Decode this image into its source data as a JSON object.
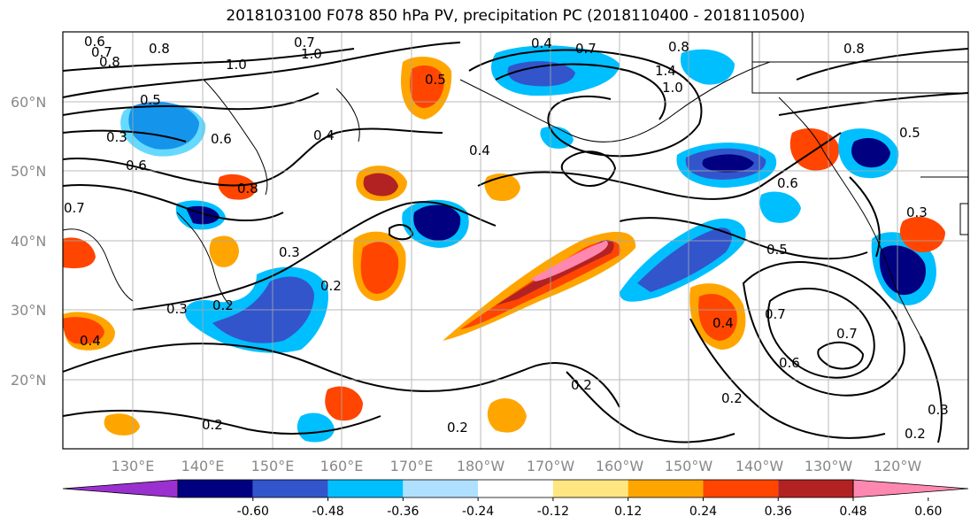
{
  "title": "2018103100 F078 850 hPa PV, precipitation PC (2018110400 - 2018110500)",
  "lat_labels": [
    "60°N",
    "50°N",
    "40°N",
    "30°N",
    "20°N"
  ],
  "lon_labels": [
    "130°E",
    "140°E",
    "150°E",
    "160°E",
    "170°E",
    "180°W",
    "170°W",
    "160°W",
    "150°W",
    "140°W",
    "130°W",
    "120°W"
  ],
  "colorbar": {
    "levels": [
      "-0.60",
      "-0.48",
      "-0.36",
      "-0.24",
      "-0.12",
      "0.12",
      "0.24",
      "0.36",
      "0.48",
      "0.60"
    ],
    "colors": [
      "#9b30d0",
      "#000080",
      "#3355cc",
      "#00bfff",
      "#b0e0ff",
      "#ffffff",
      "#ffe680",
      "#ffa500",
      "#ff4500",
      "#b22222",
      "#ff88b0"
    ]
  },
  "contour_labels": [
    "0.6",
    "0.7",
    "0.8",
    "0.8",
    "1.0",
    "0.7",
    "1.0",
    "0.4",
    "0.7",
    "0.8",
    "1.4",
    "1.0",
    "0.8",
    "0.5",
    "0.3",
    "0.6",
    "0.4",
    "0.6",
    "0.8",
    "0.7",
    "0.3",
    "0.2",
    "0.3",
    "0.2",
    "0.5",
    "0.4",
    "0.2",
    "0.2",
    "0.6",
    "0.5",
    "0.7",
    "0.4",
    "0.6",
    "0.7",
    "0.5",
    "0.3",
    "0.2",
    "0.2",
    "0.3",
    "0.2",
    "0.4"
  ]
}
